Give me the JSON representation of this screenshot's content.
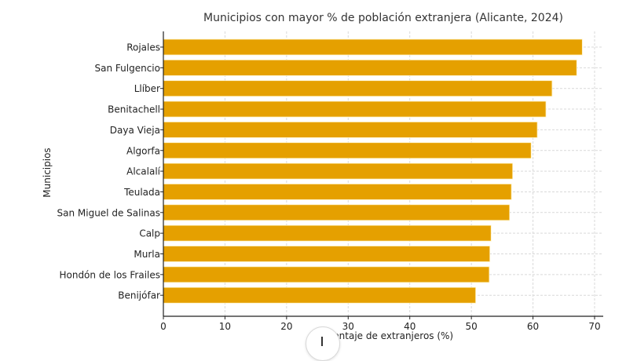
{
  "chart_data": {
    "type": "bar",
    "orientation": "horizontal",
    "title": "Municipios con mayor % de población extranjera (Alicante, 2024)",
    "xlabel": "Porcentaje de extranjeros (%)",
    "ylabel": "Municipios",
    "categories": [
      "Rojales",
      "San Fulgencio",
      "Llíber",
      "Benitachell",
      "Daya Vieja",
      "Algorfa",
      "Alcalalí",
      "Teulada",
      "San Miguel de Salinas",
      "Calp",
      "Murla",
      "Hondón de los Frailes",
      "Benijófar"
    ],
    "values": [
      68.0,
      67.1,
      63.1,
      62.1,
      60.7,
      59.7,
      56.7,
      56.5,
      56.2,
      53.2,
      53.0,
      52.9,
      50.7
    ],
    "xlim": [
      0,
      71.4
    ],
    "xticks": [
      0,
      10,
      20,
      30,
      40,
      50,
      60,
      70
    ],
    "grid": true,
    "bar_color": "#e5a000"
  },
  "scroll_button": {
    "icon": "arrow-down-icon"
  }
}
